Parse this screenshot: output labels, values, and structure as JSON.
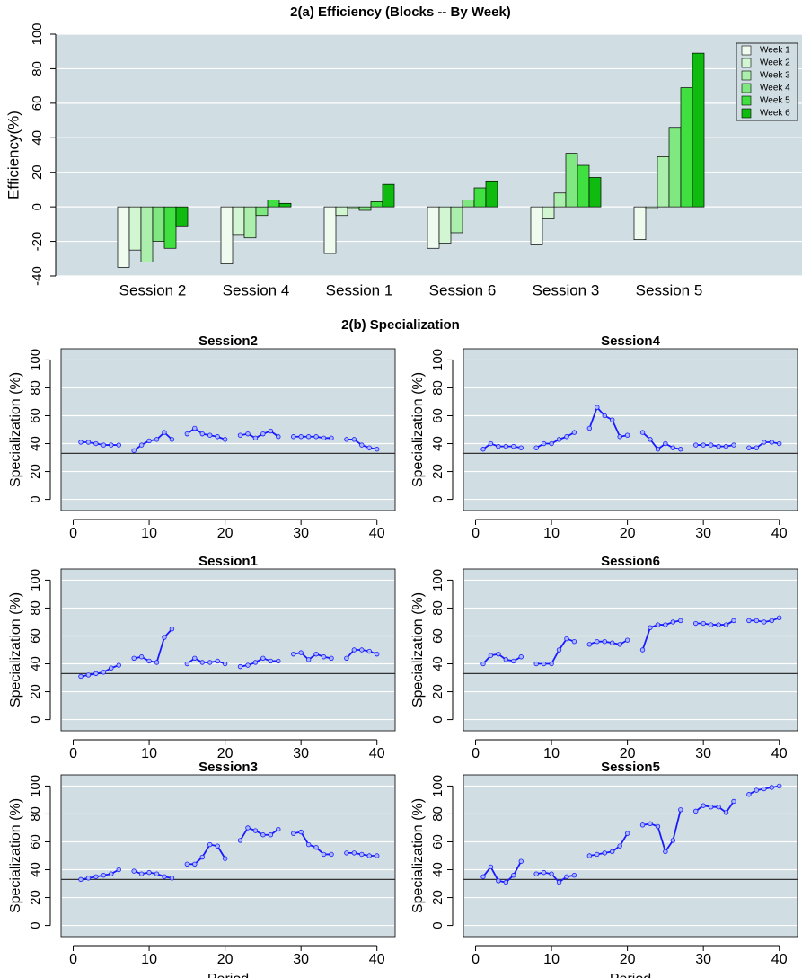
{
  "heading_b": "2(b) Specialization",
  "chart_data": [
    {
      "type": "bar",
      "title": "2(a) Efficiency (Blocks -- By Week)",
      "ylabel": "Efficiency(%)",
      "categories": [
        "Session 2",
        "Session 4",
        "Session 1",
        "Session 6",
        "Session 3",
        "Session 5"
      ],
      "series": [
        {
          "name": "Week 1",
          "color": "#f0fbf0",
          "values": [
            -35,
            -33,
            -27,
            -24,
            -22,
            -19
          ]
        },
        {
          "name": "Week 2",
          "color": "#d2f5d2",
          "values": [
            -25,
            -16,
            -5,
            -21,
            -7,
            -1
          ]
        },
        {
          "name": "Week 3",
          "color": "#acefac",
          "values": [
            -32,
            -18,
            -1,
            -15,
            8,
            29
          ]
        },
        {
          "name": "Week 4",
          "color": "#80e880",
          "values": [
            -20,
            -5,
            -2,
            4,
            31,
            46
          ]
        },
        {
          "name": "Week 5",
          "color": "#3fe03f",
          "values": [
            -24,
            4,
            3,
            11,
            24,
            69
          ]
        },
        {
          "name": "Week 6",
          "color": "#0fbb0f",
          "values": [
            -11,
            2,
            13,
            15,
            17,
            89
          ]
        }
      ],
      "ylim": [
        -40,
        100
      ],
      "yticks": [
        -40,
        -20,
        0,
        20,
        40,
        60,
        80,
        100
      ],
      "grid": true,
      "legend": "top-right"
    },
    {
      "type": "line",
      "title": "Session2",
      "ylabel": "Specialization (%)",
      "color": "#1a1aff",
      "reference_line": 33,
      "x": [
        1,
        2,
        3,
        4,
        5,
        6,
        7,
        8,
        9,
        10,
        11,
        12,
        13,
        14,
        15,
        16,
        17,
        18,
        19,
        20,
        21,
        22,
        23,
        24,
        25,
        26,
        27,
        28,
        29,
        30,
        31,
        32,
        33,
        34,
        35,
        36,
        37,
        38,
        39,
        40
      ],
      "values": [
        41,
        41,
        40,
        39,
        39,
        39,
        null,
        35,
        39,
        42,
        43,
        48,
        43,
        null,
        47,
        51,
        47,
        46,
        45,
        43,
        null,
        46,
        47,
        44,
        47,
        49,
        45,
        null,
        45,
        45,
        45,
        45,
        44,
        44,
        null,
        43,
        43,
        39,
        37,
        36
      ],
      "xlim": [
        -1.6,
        42.4
      ],
      "xticks": [
        0,
        10,
        20,
        30,
        40
      ],
      "ylim": [
        -8,
        108
      ],
      "yticks": [
        0,
        20,
        40,
        60,
        80,
        100
      ],
      "grid": true
    },
    {
      "type": "line",
      "title": "Session4",
      "ylabel": "Specialization (%)",
      "color": "#1a1aff",
      "reference_line": 33,
      "x": [
        1,
        2,
        3,
        4,
        5,
        6,
        7,
        8,
        9,
        10,
        11,
        12,
        13,
        14,
        15,
        16,
        17,
        18,
        19,
        20,
        21,
        22,
        23,
        24,
        25,
        26,
        27,
        28,
        29,
        30,
        31,
        32,
        33,
        34,
        35,
        36,
        37,
        38,
        39,
        40
      ],
      "values": [
        36,
        40,
        38,
        38,
        38,
        37,
        null,
        37,
        40,
        40,
        43,
        45,
        48,
        null,
        51,
        66,
        60,
        57,
        45,
        46,
        null,
        48,
        43,
        36,
        40,
        37,
        36,
        null,
        39,
        39,
        39,
        38,
        38,
        39,
        null,
        37,
        37,
        41,
        41,
        40
      ],
      "xlim": [
        -1.6,
        42.4
      ],
      "xticks": [
        0,
        10,
        20,
        30,
        40
      ],
      "ylim": [
        -8,
        108
      ],
      "yticks": [
        0,
        20,
        40,
        60,
        80,
        100
      ],
      "grid": true
    },
    {
      "type": "line",
      "title": "Session1",
      "ylabel": "Specialization (%)",
      "color": "#1a1aff",
      "reference_line": 33,
      "x": [
        1,
        2,
        3,
        4,
        5,
        6,
        7,
        8,
        9,
        10,
        11,
        12,
        13,
        14,
        15,
        16,
        17,
        18,
        19,
        20,
        21,
        22,
        23,
        24,
        25,
        26,
        27,
        28,
        29,
        30,
        31,
        32,
        33,
        34,
        35,
        36,
        37,
        38,
        39,
        40
      ],
      "values": [
        31,
        32,
        33,
        34,
        37,
        39,
        null,
        44,
        45,
        42,
        41,
        59,
        65,
        null,
        40,
        44,
        41,
        41,
        42,
        40,
        null,
        38,
        39,
        41,
        44,
        42,
        42,
        null,
        47,
        48,
        43,
        47,
        45,
        44,
        null,
        44,
        50,
        50,
        49,
        47
      ],
      "xlim": [
        -1.6,
        42.4
      ],
      "xticks": [
        0,
        10,
        20,
        30,
        40
      ],
      "ylim": [
        -8,
        108
      ],
      "yticks": [
        0,
        20,
        40,
        60,
        80,
        100
      ],
      "grid": true
    },
    {
      "type": "line",
      "title": "Session6",
      "ylabel": "Specialization (%)",
      "color": "#1a1aff",
      "reference_line": 33,
      "x": [
        1,
        2,
        3,
        4,
        5,
        6,
        7,
        8,
        9,
        10,
        11,
        12,
        13,
        14,
        15,
        16,
        17,
        18,
        19,
        20,
        21,
        22,
        23,
        24,
        25,
        26,
        27,
        28,
        29,
        30,
        31,
        32,
        33,
        34,
        35,
        36,
        37,
        38,
        39,
        40
      ],
      "values": [
        40,
        46,
        47,
        43,
        42,
        45,
        null,
        40,
        40,
        40,
        50,
        58,
        56,
        null,
        54,
        56,
        56,
        55,
        54,
        57,
        null,
        50,
        66,
        68,
        68,
        70,
        71,
        null,
        69,
        69,
        68,
        68,
        68,
        71,
        null,
        71,
        71,
        70,
        71,
        73
      ],
      "xlim": [
        -1.6,
        42.4
      ],
      "xticks": [
        0,
        10,
        20,
        30,
        40
      ],
      "ylim": [
        -8,
        108
      ],
      "yticks": [
        0,
        20,
        40,
        60,
        80,
        100
      ],
      "grid": true
    },
    {
      "type": "line",
      "title": "Session3",
      "ylabel": "Specialization (%)",
      "xlabel": "Period",
      "color": "#1a1aff",
      "reference_line": 33,
      "x": [
        1,
        2,
        3,
        4,
        5,
        6,
        7,
        8,
        9,
        10,
        11,
        12,
        13,
        14,
        15,
        16,
        17,
        18,
        19,
        20,
        21,
        22,
        23,
        24,
        25,
        26,
        27,
        28,
        29,
        30,
        31,
        32,
        33,
        34,
        35,
        36,
        37,
        38,
        39,
        40
      ],
      "values": [
        33,
        34,
        35,
        36,
        37,
        40,
        null,
        39,
        37,
        38,
        37,
        35,
        34,
        null,
        44,
        44,
        49,
        58,
        57,
        48,
        null,
        61,
        70,
        68,
        65,
        65,
        69,
        null,
        66,
        67,
        58,
        56,
        51,
        51,
        null,
        52,
        52,
        51,
        50,
        50
      ],
      "xlim": [
        -1.6,
        42.4
      ],
      "xticks": [
        0,
        10,
        20,
        30,
        40
      ],
      "ylim": [
        -8,
        108
      ],
      "yticks": [
        0,
        20,
        40,
        60,
        80,
        100
      ],
      "grid": true
    },
    {
      "type": "line",
      "title": "Session5",
      "ylabel": "Specialization (%)",
      "xlabel": "Period",
      "color": "#1a1aff",
      "reference_line": 33,
      "x": [
        1,
        2,
        3,
        4,
        5,
        6,
        7,
        8,
        9,
        10,
        11,
        12,
        13,
        14,
        15,
        16,
        17,
        18,
        19,
        20,
        21,
        22,
        23,
        24,
        25,
        26,
        27,
        28,
        29,
        30,
        31,
        32,
        33,
        34,
        35,
        36,
        37,
        38,
        39,
        40
      ],
      "values": [
        35,
        42,
        32,
        31,
        36,
        46,
        null,
        37,
        38,
        37,
        31,
        35,
        36,
        null,
        50,
        51,
        52,
        53,
        57,
        66,
        null,
        72,
        73,
        71,
        53,
        61,
        83,
        null,
        82,
        86,
        85,
        85,
        81,
        89,
        null,
        94,
        97,
        98,
        99,
        100
      ],
      "xlim": [
        -1.6,
        42.4
      ],
      "xticks": [
        0,
        10,
        20,
        30,
        40
      ],
      "ylim": [
        -8,
        108
      ],
      "yticks": [
        0,
        20,
        40,
        60,
        80,
        100
      ],
      "grid": true
    }
  ]
}
